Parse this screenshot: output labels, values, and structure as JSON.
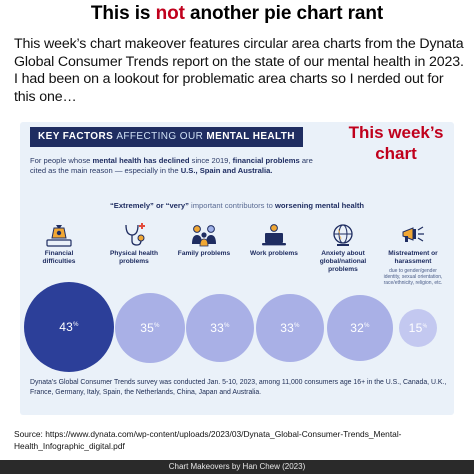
{
  "title": {
    "pre": "This is ",
    "emph": "not",
    "post": " another pie chart rant"
  },
  "intro": "This week’s chart makeover features circular area charts from the Dynata Global Consumer Trends report on the state of our mental health in 2023. I had been on a lookout for problematic area charts so I nerded out for this one…",
  "infographic": {
    "banner": {
      "part1": "KEY FACTORS ",
      "part2": "AFFECTING OUR ",
      "part3": "MENTAL HEALTH"
    },
    "callout": "This week’s chart",
    "subtitle": {
      "a": "For people whose ",
      "b": "mental health has declined",
      "c": " since 2019, ",
      "d": "financial problems",
      "e": " are cited as the main reason — especially in the ",
      "f": "U.S., Spain and Australia."
    },
    "note": {
      "a": "“Extremely” or “very”",
      "b": " important contributors to ",
      "c": "worsening mental health"
    },
    "factors": [
      {
        "label": "Financial difficulties",
        "value": "43",
        "unit": "%",
        "icon": "money-bag-icon",
        "sub": ""
      },
      {
        "label": "Physical health problems",
        "value": "35",
        "unit": "%",
        "icon": "medical-icon",
        "sub": ""
      },
      {
        "label": "Family problems",
        "value": "33",
        "unit": "%",
        "icon": "family-icon",
        "sub": ""
      },
      {
        "label": "Work problems",
        "value": "33",
        "unit": "%",
        "icon": "laptop-icon",
        "sub": ""
      },
      {
        "label": "Anxiety about global/national problems",
        "value": "32",
        "unit": "%",
        "icon": "globe-icon",
        "sub": ""
      },
      {
        "label": "Mistreatment or harassment",
        "value": "15",
        "unit": "%",
        "icon": "megaphone-icon",
        "sub": "due to gender/gender identity, sexual orientation, race/ethnicity, religion, etc."
      }
    ],
    "footer": "Dynata’s Global Consumer Trends survey was conducted Jan. 5-10, 2023, among 11,000 consumers age 16+ in the U.S., Canada, U.K., France, Germany, Italy, Spain, the Netherlands, China, Japan and Australia.",
    "colors": {
      "primary_bubble": "#2c3f99",
      "secondary_bubble": "#a9b0e6",
      "small_bubble": "#c3c8f0",
      "navy": "#1f2d61",
      "callout": "#c0001c"
    }
  },
  "source": "Source: https://www.dynata.com/wp-content/uploads/2023/03/Dynata_Global-Consumer-Trends_Mental-Health_Infographic_digital.pdf",
  "credit": "Chart Makeovers by Han Chew (2023)"
}
